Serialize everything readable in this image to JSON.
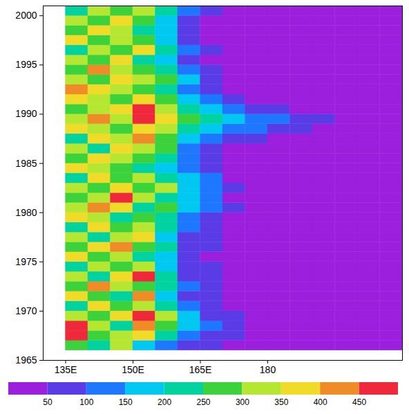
{
  "chart_data": {
    "type": "heatmap",
    "xlim": [
      130,
      210
    ],
    "xticks": [
      {
        "value": 135,
        "label": "135E"
      },
      {
        "value": 150,
        "label": "150E"
      },
      {
        "value": 165,
        "label": "165E"
      },
      180
    ],
    "ylim": [
      1965,
      2001
    ],
    "yticks": [
      1965,
      1970,
      1975,
      1980,
      1985,
      1990,
      1995,
      2000
    ],
    "x_bins": [
      135,
      140,
      145,
      150,
      155,
      160,
      165,
      170,
      175,
      180,
      185,
      190,
      195,
      200,
      205,
      210
    ],
    "y_bins": [
      1966,
      1967,
      1968,
      1969,
      1970,
      1971,
      1972,
      1973,
      1974,
      1975,
      1976,
      1977,
      1978,
      1979,
      1980,
      1981,
      1982,
      1983,
      1984,
      1985,
      1986,
      1987,
      1988,
      1989,
      1990,
      1991,
      1992,
      1993,
      1994,
      1995,
      1996,
      1997,
      1998,
      1999,
      2000,
      2001
    ],
    "values": [
      [
        250,
        200,
        300,
        150,
        120,
        80,
        70,
        40,
        30,
        20,
        20,
        20,
        20,
        20,
        20
      ],
      [
        450,
        250,
        300,
        350,
        200,
        120,
        90,
        60,
        40,
        20,
        20,
        20,
        20,
        20,
        20
      ],
      [
        480,
        300,
        200,
        400,
        250,
        150,
        100,
        60,
        40,
        20,
        20,
        20,
        20,
        20,
        20
      ],
      [
        300,
        250,
        350,
        450,
        300,
        150,
        80,
        50,
        30,
        20,
        20,
        20,
        20,
        20,
        20
      ],
      [
        200,
        350,
        250,
        300,
        200,
        100,
        70,
        40,
        20,
        20,
        20,
        20,
        20,
        20,
        20
      ],
      [
        350,
        250,
        200,
        400,
        150,
        80,
        60,
        40,
        20,
        20,
        20,
        20,
        20,
        20,
        20
      ],
      [
        250,
        400,
        300,
        250,
        200,
        100,
        60,
        40,
        20,
        20,
        20,
        20,
        20,
        20,
        20
      ],
      [
        300,
        200,
        350,
        450,
        200,
        80,
        60,
        30,
        20,
        20,
        20,
        20,
        20,
        20,
        20
      ],
      [
        200,
        300,
        250,
        300,
        150,
        80,
        50,
        30,
        20,
        20,
        20,
        20,
        20,
        20,
        20
      ],
      [
        350,
        250,
        300,
        200,
        150,
        70,
        40,
        30,
        20,
        20,
        20,
        20,
        20,
        20,
        20
      ],
      [
        250,
        350,
        400,
        250,
        200,
        80,
        50,
        30,
        20,
        20,
        20,
        20,
        20,
        20,
        20
      ],
      [
        300,
        200,
        300,
        350,
        150,
        70,
        50,
        30,
        20,
        20,
        20,
        20,
        20,
        20,
        20
      ],
      [
        200,
        350,
        250,
        300,
        200,
        100,
        60,
        30,
        20,
        20,
        20,
        20,
        20,
        20,
        20
      ],
      [
        350,
        300,
        200,
        250,
        200,
        120,
        80,
        40,
        20,
        20,
        20,
        20,
        20,
        20,
        20
      ],
      [
        300,
        400,
        350,
        200,
        250,
        150,
        100,
        50,
        20,
        20,
        20,
        20,
        20,
        20,
        20
      ],
      [
        250,
        300,
        480,
        300,
        200,
        150,
        100,
        40,
        20,
        20,
        20,
        20,
        20,
        20,
        20
      ],
      [
        300,
        250,
        350,
        250,
        300,
        150,
        120,
        50,
        20,
        20,
        20,
        20,
        20,
        20,
        20
      ],
      [
        200,
        350,
        250,
        300,
        200,
        150,
        100,
        40,
        20,
        20,
        20,
        20,
        20,
        20,
        20
      ],
      [
        350,
        300,
        250,
        200,
        150,
        120,
        60,
        30,
        20,
        20,
        20,
        20,
        20,
        20,
        20
      ],
      [
        250,
        350,
        300,
        250,
        200,
        100,
        50,
        30,
        20,
        20,
        20,
        20,
        20,
        20,
        20
      ],
      [
        300,
        200,
        350,
        300,
        250,
        120,
        80,
        40,
        20,
        20,
        20,
        20,
        20,
        20,
        20
      ],
      [
        200,
        350,
        300,
        400,
        250,
        150,
        100,
        60,
        50,
        40,
        30,
        20,
        20,
        20,
        20
      ],
      [
        350,
        300,
        250,
        350,
        300,
        200,
        150,
        120,
        100,
        80,
        60,
        40,
        20,
        20,
        20
      ],
      [
        300,
        400,
        300,
        480,
        350,
        250,
        200,
        150,
        100,
        120,
        80,
        60,
        20,
        20,
        20
      ],
      [
        250,
        300,
        350,
        450,
        300,
        200,
        150,
        100,
        80,
        60,
        40,
        20,
        20,
        20,
        20
      ],
      [
        350,
        300,
        250,
        350,
        250,
        150,
        100,
        60,
        40,
        20,
        20,
        20,
        20,
        20,
        20
      ],
      [
        400,
        350,
        300,
        250,
        200,
        120,
        80,
        40,
        20,
        20,
        20,
        20,
        20,
        20,
        20
      ],
      [
        300,
        250,
        350,
        300,
        250,
        150,
        60,
        30,
        20,
        20,
        20,
        20,
        20,
        20,
        20
      ],
      [
        250,
        400,
        300,
        250,
        200,
        100,
        50,
        30,
        20,
        20,
        20,
        20,
        20,
        20,
        20
      ],
      [
        300,
        250,
        350,
        200,
        150,
        80,
        40,
        20,
        20,
        20,
        20,
        20,
        20,
        20,
        20
      ],
      [
        200,
        300,
        250,
        350,
        200,
        100,
        50,
        20,
        20,
        20,
        20,
        20,
        20,
        20,
        20
      ],
      [
        350,
        250,
        300,
        250,
        150,
        80,
        40,
        20,
        20,
        20,
        20,
        20,
        20,
        20,
        20
      ],
      [
        250,
        350,
        300,
        200,
        150,
        60,
        40,
        20,
        20,
        20,
        20,
        20,
        20,
        20,
        20
      ],
      [
        300,
        250,
        350,
        250,
        150,
        80,
        40,
        20,
        20,
        20,
        20,
        20,
        20,
        20,
        20
      ],
      [
        200,
        300,
        250,
        300,
        200,
        100,
        50,
        20,
        20,
        20,
        20,
        20,
        20,
        20,
        20
      ]
    ],
    "colorbar": {
      "range": [
        0,
        500
      ],
      "ticks": [
        50,
        100,
        150,
        200,
        250,
        300,
        350,
        400,
        450
      ],
      "colors": [
        "#9b1fdc",
        "#5a3ce6",
        "#1e78ff",
        "#00c8f0",
        "#00d2a0",
        "#3cd23c",
        "#b4e632",
        "#f0dc28",
        "#f08c28",
        "#f0283c"
      ]
    }
  }
}
